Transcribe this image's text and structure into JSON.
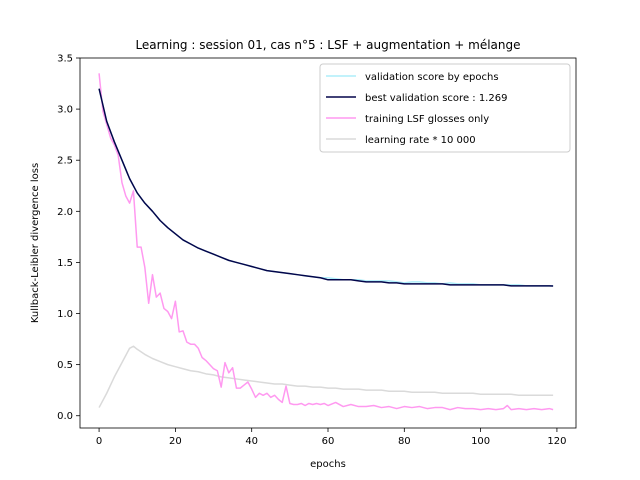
{
  "chart_data": {
    "type": "line",
    "title": "Learning : session 01, cas n°5 : LSF + augmentation + mélange",
    "xlabel": "epochs",
    "ylabel": "Kullback-Leibler divergence loss",
    "xlim": [
      -5,
      125
    ],
    "ylim": [
      -0.12,
      3.5
    ],
    "xticks": [
      0,
      20,
      40,
      60,
      80,
      100,
      120
    ],
    "yticks": [
      0.0,
      0.5,
      1.0,
      1.5,
      2.0,
      2.5,
      3.0,
      3.5
    ],
    "xtick_labels": [
      "0",
      "20",
      "40",
      "60",
      "80",
      "100",
      "120"
    ],
    "ytick_labels": [
      "0.0",
      "0.5",
      "1.0",
      "1.5",
      "2.0",
      "2.5",
      "3.0",
      "3.5"
    ],
    "grid": false,
    "legend_position": "top-right",
    "series": [
      {
        "name": "validation score by epochs",
        "color": "#aeeefa",
        "x": [
          0,
          2,
          4,
          6,
          8,
          10,
          12,
          14,
          16,
          18,
          20,
          22,
          24,
          26,
          28,
          30,
          32,
          34,
          36,
          38,
          40,
          42,
          44,
          46,
          48,
          50,
          52,
          54,
          56,
          58,
          60,
          62,
          64,
          66,
          68,
          70,
          72,
          74,
          76,
          78,
          80,
          82,
          84,
          86,
          88,
          90,
          92,
          94,
          96,
          98,
          100,
          102,
          104,
          106,
          108,
          110,
          112,
          114,
          116,
          118,
          119
        ],
        "values": [
          3.2,
          2.88,
          2.68,
          2.5,
          2.32,
          2.18,
          2.08,
          2.0,
          1.91,
          1.84,
          1.78,
          1.72,
          1.68,
          1.64,
          1.61,
          1.58,
          1.55,
          1.52,
          1.5,
          1.48,
          1.46,
          1.44,
          1.42,
          1.41,
          1.4,
          1.39,
          1.38,
          1.37,
          1.36,
          1.35,
          1.35,
          1.34,
          1.33,
          1.33,
          1.33,
          1.32,
          1.32,
          1.32,
          1.32,
          1.31,
          1.3,
          1.31,
          1.31,
          1.3,
          1.3,
          1.29,
          1.3,
          1.29,
          1.29,
          1.29,
          1.28,
          1.28,
          1.28,
          1.28,
          1.28,
          1.28,
          1.27,
          1.27,
          1.27,
          1.27,
          1.27
        ]
      },
      {
        "name": "best validation score : 1.269",
        "color": "#03054a",
        "x": [
          0,
          2,
          4,
          6,
          8,
          10,
          12,
          14,
          16,
          18,
          20,
          22,
          24,
          26,
          28,
          30,
          32,
          34,
          36,
          38,
          40,
          42,
          44,
          46,
          48,
          50,
          52,
          54,
          56,
          58,
          60,
          62,
          64,
          66,
          68,
          70,
          72,
          74,
          76,
          78,
          80,
          82,
          84,
          86,
          88,
          90,
          92,
          94,
          96,
          98,
          100,
          102,
          104,
          106,
          108,
          110,
          112,
          114,
          116,
          118,
          119
        ],
        "values": [
          3.2,
          2.88,
          2.68,
          2.5,
          2.32,
          2.18,
          2.08,
          2.0,
          1.91,
          1.84,
          1.78,
          1.72,
          1.68,
          1.64,
          1.61,
          1.58,
          1.55,
          1.52,
          1.5,
          1.48,
          1.46,
          1.44,
          1.42,
          1.41,
          1.4,
          1.39,
          1.38,
          1.37,
          1.36,
          1.35,
          1.33,
          1.33,
          1.33,
          1.33,
          1.32,
          1.31,
          1.31,
          1.31,
          1.3,
          1.3,
          1.29,
          1.29,
          1.29,
          1.29,
          1.29,
          1.29,
          1.28,
          1.28,
          1.28,
          1.28,
          1.28,
          1.28,
          1.28,
          1.28,
          1.27,
          1.27,
          1.27,
          1.27,
          1.27,
          1.27,
          1.269
        ]
      },
      {
        "name": "training LSF glosses only",
        "color": "#ff99f0",
        "x": [
          0,
          1,
          2,
          3,
          4,
          5,
          6,
          7,
          8,
          9,
          10,
          11,
          12,
          13,
          14,
          15,
          16,
          17,
          18,
          19,
          20,
          21,
          22,
          23,
          24,
          25,
          26,
          27,
          28,
          29,
          30,
          31,
          32,
          33,
          34,
          35,
          36,
          37,
          38,
          39,
          40,
          41,
          42,
          43,
          44,
          45,
          46,
          47,
          48,
          49,
          50,
          51,
          52,
          53,
          54,
          55,
          56,
          57,
          58,
          59,
          60,
          62,
          64,
          66,
          68,
          70,
          72,
          74,
          76,
          78,
          80,
          82,
          84,
          86,
          88,
          90,
          92,
          94,
          96,
          98,
          100,
          102,
          104,
          106,
          107,
          108,
          110,
          112,
          114,
          116,
          118,
          119
        ],
        "values": [
          3.35,
          2.98,
          2.85,
          2.72,
          2.65,
          2.55,
          2.28,
          2.15,
          2.08,
          2.2,
          1.65,
          1.65,
          1.45,
          1.1,
          1.38,
          1.16,
          1.2,
          1.05,
          1.02,
          0.95,
          1.12,
          0.82,
          0.83,
          0.72,
          0.7,
          0.7,
          0.66,
          0.57,
          0.54,
          0.5,
          0.46,
          0.44,
          0.28,
          0.52,
          0.42,
          0.47,
          0.27,
          0.27,
          0.3,
          0.33,
          0.26,
          0.18,
          0.22,
          0.2,
          0.22,
          0.18,
          0.2,
          0.16,
          0.13,
          0.29,
          0.12,
          0.11,
          0.11,
          0.12,
          0.1,
          0.12,
          0.11,
          0.12,
          0.11,
          0.12,
          0.1,
          0.13,
          0.09,
          0.11,
          0.09,
          0.09,
          0.1,
          0.08,
          0.09,
          0.07,
          0.09,
          0.08,
          0.09,
          0.07,
          0.08,
          0.08,
          0.06,
          0.08,
          0.07,
          0.07,
          0.06,
          0.07,
          0.06,
          0.07,
          0.1,
          0.06,
          0.07,
          0.06,
          0.07,
          0.06,
          0.07,
          0.06
        ]
      },
      {
        "name": "learning rate * 10 000",
        "color": "#dadada",
        "x": [
          0,
          2,
          4,
          6,
          8,
          9,
          10,
          12,
          14,
          16,
          18,
          20,
          22,
          24,
          26,
          28,
          30,
          32,
          34,
          36,
          38,
          40,
          42,
          44,
          46,
          48,
          50,
          52,
          54,
          56,
          58,
          60,
          62,
          64,
          66,
          68,
          70,
          72,
          74,
          76,
          78,
          80,
          82,
          84,
          86,
          88,
          90,
          92,
          94,
          96,
          98,
          100,
          102,
          104,
          106,
          108,
          110,
          112,
          114,
          116,
          118,
          119
        ],
        "values": [
          0.08,
          0.22,
          0.38,
          0.52,
          0.66,
          0.68,
          0.65,
          0.6,
          0.56,
          0.53,
          0.5,
          0.48,
          0.46,
          0.44,
          0.43,
          0.41,
          0.4,
          0.38,
          0.37,
          0.36,
          0.35,
          0.34,
          0.33,
          0.32,
          0.31,
          0.31,
          0.3,
          0.29,
          0.29,
          0.28,
          0.28,
          0.27,
          0.27,
          0.26,
          0.26,
          0.26,
          0.25,
          0.25,
          0.25,
          0.24,
          0.24,
          0.24,
          0.23,
          0.23,
          0.23,
          0.23,
          0.22,
          0.22,
          0.22,
          0.22,
          0.22,
          0.21,
          0.21,
          0.21,
          0.21,
          0.21,
          0.2,
          0.2,
          0.2,
          0.2,
          0.2,
          0.2
        ]
      }
    ]
  }
}
